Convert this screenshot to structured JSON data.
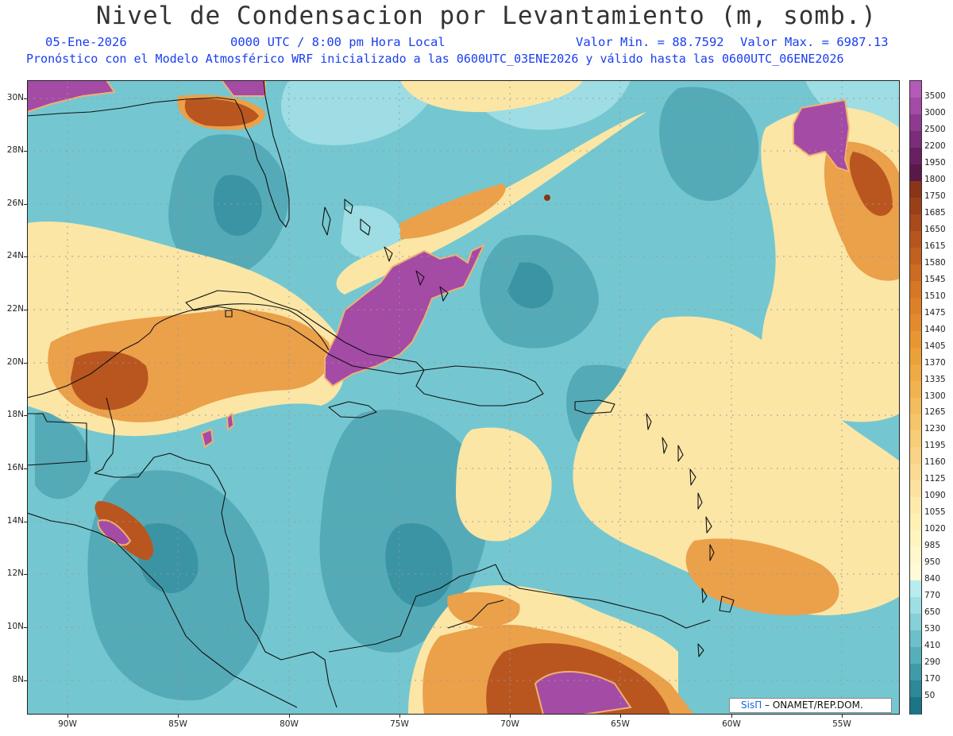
{
  "header": {
    "title": "Nivel de Condensacion por Levantamiento (m, somb.)",
    "date": "05-Ene-2026",
    "time": "0000 UTC / 8:00 pm Hora Local",
    "valmin": "Valor Min. = 88.7592",
    "valmax": "Valor Max. = 6987.13",
    "model_line": "Pronóstico con el Modelo Atmosférico WRF inicializado a las 0600UTC_03ENE2026 y válido hasta las  0600UTC_06ENE2026"
  },
  "map": {
    "lat_labels": [
      "30N",
      "28N",
      "26N",
      "24N",
      "22N",
      "20N",
      "18N",
      "16N",
      "14N",
      "12N",
      "10N",
      "8N"
    ],
    "lon_labels": [
      "90W",
      "85W",
      "80W",
      "75W",
      "70W",
      "65W",
      "60W",
      "55W"
    ],
    "credit_logo": "SisΠ",
    "credit_text": " – ONAMET/REP.DOM."
  },
  "colorbar": {
    "classes": [
      {
        "label": "3500",
        "color": "#b45ab8"
      },
      {
        "label": "3000",
        "color": "#a44ba6"
      },
      {
        "label": "2500",
        "color": "#8e3a8e"
      },
      {
        "label": "2200",
        "color": "#7a2d78"
      },
      {
        "label": "1950",
        "color": "#6a2060"
      },
      {
        "label": "1800",
        "color": "#5a1848"
      },
      {
        "label": "1750",
        "color": "#8a3418"
      },
      {
        "label": "1685",
        "color": "#9a4018"
      },
      {
        "label": "1650",
        "color": "#a84a1a"
      },
      {
        "label": "1615",
        "color": "#b6561e"
      },
      {
        "label": "1580",
        "color": "#c2601f"
      },
      {
        "label": "1545",
        "color": "#cc6c22"
      },
      {
        "label": "1510",
        "color": "#d67726"
      },
      {
        "label": "1475",
        "color": "#dd8128"
      },
      {
        "label": "1440",
        "color": "#e38b2c"
      },
      {
        "label": "1405",
        "color": "#e89632"
      },
      {
        "label": "1370",
        "color": "#eca03a"
      },
      {
        "label": "1335",
        "color": "#efaa44"
      },
      {
        "label": "1300",
        "color": "#f1b34f"
      },
      {
        "label": "1265",
        "color": "#f3bc5c"
      },
      {
        "label": "1230",
        "color": "#f5c56a"
      },
      {
        "label": "1195",
        "color": "#f7cd78"
      },
      {
        "label": "1160",
        "color": "#f9d486"
      },
      {
        "label": "1125",
        "color": "#fbdb93"
      },
      {
        "label": "1090",
        "color": "#fde29f"
      },
      {
        "label": "1055",
        "color": "#feeaaa"
      },
      {
        "label": "1020",
        "color": "#fff0b5"
      },
      {
        "label": "985",
        "color": "#fff5c0"
      },
      {
        "label": "950",
        "color": "#fff8cc"
      },
      {
        "label": "840",
        "color": "#fffbd8"
      },
      {
        "label": "770",
        "color": "#b8ecef"
      },
      {
        "label": "650",
        "color": "#9fdfe4"
      },
      {
        "label": "530",
        "color": "#86d0d8"
      },
      {
        "label": "410",
        "color": "#6dbfca"
      },
      {
        "label": "290",
        "color": "#56aebb"
      },
      {
        "label": "170",
        "color": "#3f9baa"
      },
      {
        "label": "50",
        "color": "#2d8898"
      },
      {
        "label": "",
        "color": "#1d7485"
      }
    ]
  }
}
